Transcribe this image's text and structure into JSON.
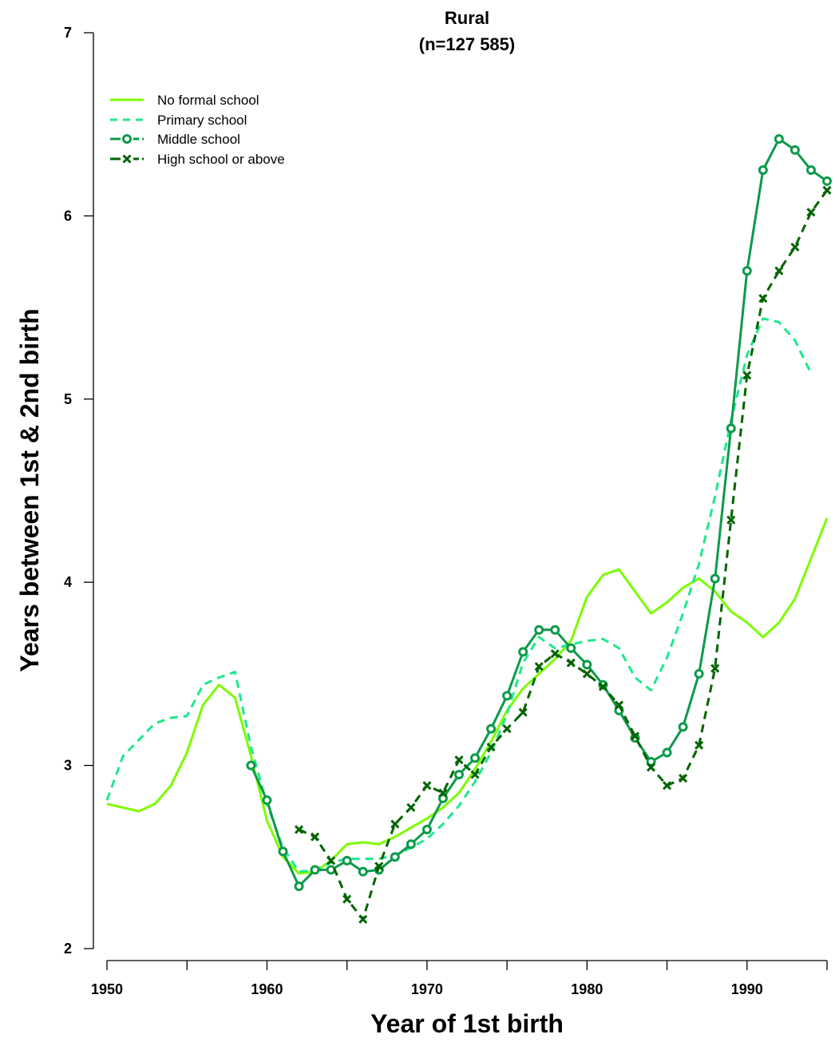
{
  "chart_data": {
    "type": "line",
    "title": "Rural",
    "subtitle": "(n=127 585)",
    "xlabel": "Year of 1st birth",
    "ylabel": "Years between 1st & 2nd birth",
    "xlim": [
      1950,
      1995
    ],
    "ylim": [
      2,
      7
    ],
    "x_ticks": [
      1950,
      1955,
      1960,
      1965,
      1970,
      1975,
      1980,
      1985,
      1990,
      1995
    ],
    "x_tick_labels": [
      "1950",
      "1960",
      "1970",
      "1980",
      "1990"
    ],
    "y_ticks": [
      2,
      3,
      4,
      5,
      6,
      7
    ],
    "legend_position": "top-left",
    "grid": false,
    "series": [
      {
        "name": "No formal school",
        "color": "#7cfc00",
        "line": "solid",
        "marker": "none",
        "x": [
          1950,
          1951,
          1952,
          1953,
          1954,
          1955,
          1956,
          1957,
          1958,
          1959,
          1960,
          1961,
          1962,
          1963,
          1964,
          1965,
          1966,
          1967,
          1968,
          1969,
          1970,
          1971,
          1972,
          1973,
          1974,
          1975,
          1976,
          1977,
          1978,
          1979,
          1980,
          1981,
          1982,
          1983,
          1984,
          1985,
          1986,
          1987,
          1988,
          1989,
          1990,
          1991,
          1992,
          1993,
          1994,
          1995
        ],
        "y": [
          2.79,
          2.77,
          2.75,
          2.79,
          2.89,
          3.07,
          3.33,
          3.44,
          3.37,
          3.05,
          2.7,
          2.5,
          2.41,
          2.42,
          2.48,
          2.57,
          2.58,
          2.57,
          2.61,
          2.66,
          2.71,
          2.77,
          2.85,
          2.98,
          3.13,
          3.3,
          3.42,
          3.5,
          3.58,
          3.68,
          3.92,
          4.04,
          4.07,
          3.95,
          3.83,
          3.89,
          3.97,
          4.02,
          3.95,
          3.84,
          3.78,
          3.7,
          3.78,
          3.91,
          4.13,
          4.35
        ]
      },
      {
        "name": "Primary school",
        "color": "#1ee88c",
        "line": "dashed",
        "marker": "none",
        "x": [
          1950,
          1951,
          1952,
          1953,
          1954,
          1955,
          1956,
          1957,
          1958,
          1959,
          1960,
          1961,
          1962,
          1963,
          1964,
          1965,
          1966,
          1967,
          1968,
          1969,
          1970,
          1971,
          1972,
          1973,
          1974,
          1975,
          1976,
          1977,
          1978,
          1979,
          1980,
          1981,
          1982,
          1983,
          1984,
          1985,
          1986,
          1987,
          1988,
          1989,
          1990,
          1991,
          1992,
          1993,
          1994
        ],
        "y": [
          2.81,
          3.05,
          3.14,
          3.23,
          3.26,
          3.27,
          3.44,
          3.48,
          3.51,
          3.1,
          2.79,
          2.55,
          2.42,
          2.43,
          2.47,
          2.49,
          2.49,
          2.49,
          2.51,
          2.55,
          2.6,
          2.68,
          2.78,
          2.91,
          3.07,
          3.28,
          3.56,
          3.7,
          3.64,
          3.66,
          3.68,
          3.69,
          3.64,
          3.48,
          3.41,
          3.59,
          3.83,
          4.1,
          4.47,
          4.88,
          5.24,
          5.44,
          5.42,
          5.32,
          5.14
        ]
      },
      {
        "name": "Middle school",
        "color": "#0d9a4a",
        "line": "solid",
        "marker": "o",
        "x": [
          1959,
          1960,
          1961,
          1962,
          1963,
          1964,
          1965,
          1966,
          1967,
          1968,
          1969,
          1970,
          1971,
          1972,
          1973,
          1974,
          1975,
          1976,
          1977,
          1978,
          1979,
          1980,
          1981,
          1982,
          1983,
          1984,
          1985,
          1986,
          1987,
          1988,
          1989,
          1990,
          1991,
          1992,
          1993,
          1994,
          1995
        ],
        "y": [
          3.0,
          2.81,
          2.53,
          2.34,
          2.43,
          2.43,
          2.48,
          2.42,
          2.43,
          2.5,
          2.57,
          2.65,
          2.82,
          2.95,
          3.04,
          3.2,
          3.38,
          3.62,
          3.74,
          3.74,
          3.64,
          3.55,
          3.44,
          3.3,
          3.15,
          3.02,
          3.07,
          3.21,
          3.5,
          4.02,
          4.84,
          5.7,
          6.25,
          6.42,
          6.36,
          6.25,
          6.19
        ]
      },
      {
        "name": "High school or above",
        "color": "#006400",
        "line": "dashed",
        "marker": "x",
        "x": [
          1962,
          1963,
          1964,
          1965,
          1966,
          1967,
          1968,
          1969,
          1970,
          1971,
          1972,
          1973,
          1974,
          1975,
          1976,
          1977,
          1978,
          1979,
          1980,
          1981,
          1982,
          1983,
          1984,
          1985,
          1986,
          1987,
          1988,
          1989,
          1990,
          1991,
          1992,
          1993,
          1994,
          1995
        ],
        "y": [
          2.65,
          2.61,
          2.48,
          2.27,
          2.16,
          2.45,
          2.68,
          2.77,
          2.89,
          2.85,
          3.03,
          2.95,
          3.1,
          3.2,
          3.29,
          3.54,
          3.61,
          3.56,
          3.5,
          3.43,
          3.33,
          3.16,
          2.99,
          2.89,
          2.93,
          3.11,
          3.53,
          4.34,
          5.13,
          5.55,
          5.7,
          5.83,
          6.02,
          6.14
        ]
      }
    ]
  }
}
